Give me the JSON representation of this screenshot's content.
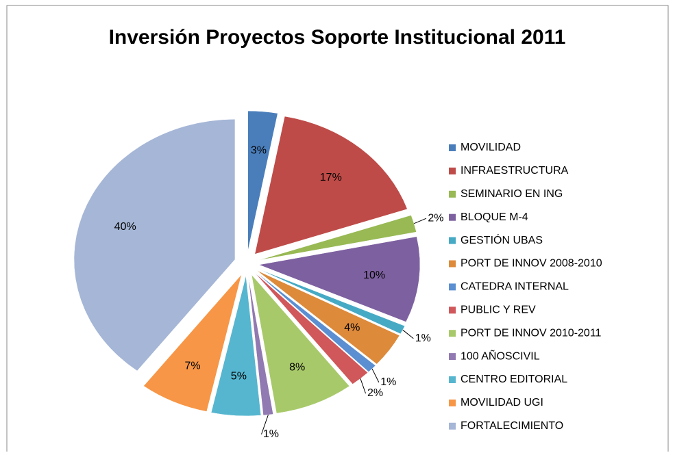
{
  "chart_data": {
    "type": "pie",
    "title": "Inversión Proyectos Soporte Institucional 2011",
    "categories": [
      "MOVILIDAD",
      "INFRAESTRUCTURA",
      "SEMINARIO EN ING",
      "BLOQUE M-4",
      "GESTIÓN UBAS",
      "PORT DE INNOV 2008-2010",
      "CATEDRA INTERNAL",
      "PUBLIC Y REV",
      "PORT DE INNOV 2010-2011",
      "100 AÑOSCIVIL",
      "CENTRO EDITORIAL",
      "MOVILIDAD UGI",
      "FORTALECIMIENTO"
    ],
    "values": [
      3,
      17,
      2,
      10,
      1,
      4,
      1,
      2,
      8,
      1,
      5,
      7,
      40
    ],
    "value_labels": [
      "3%",
      "17%",
      "2%",
      "10%",
      "1%",
      "4%",
      "1%",
      "2%",
      "8%",
      "1%",
      "5%",
      "7%",
      "40%"
    ],
    "colors": [
      "#4a7ebb",
      "#be4b48",
      "#98b954",
      "#7d60a0",
      "#46aac5",
      "#dd8a3a",
      "#5b8fd1",
      "#d0575a",
      "#a8c96a",
      "#9179b1",
      "#56b6cf",
      "#f79646",
      "#a5b6d6"
    ],
    "legend": "right"
  }
}
